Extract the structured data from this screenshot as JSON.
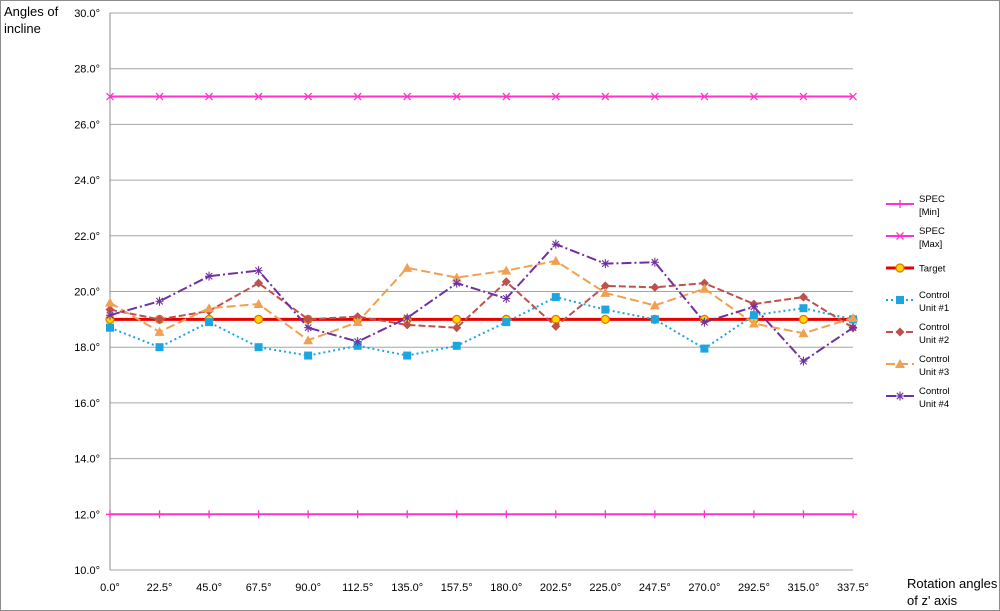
{
  "chart_data": {
    "type": "line",
    "ylabel": "Angles of incline",
    "xlabel": "Rotation angles of z' axis",
    "ylim": [
      10,
      30
    ],
    "y_ticks": [
      "10.0°",
      "12.0°",
      "14.0°",
      "16.0°",
      "18.0°",
      "20.0°",
      "22.0°",
      "24.0°",
      "26.0°",
      "28.0°",
      "30.0°"
    ],
    "y_tick_values": [
      10,
      12,
      14,
      16,
      18,
      20,
      22,
      24,
      26,
      28,
      30
    ],
    "categories": [
      "0.0°",
      "22.5°",
      "45.0°",
      "67.5°",
      "90.0°",
      "112.5°",
      "135.0°",
      "157.5°",
      "180.0°",
      "202.5°",
      "225.0°",
      "247.5°",
      "270.0°",
      "292.5°",
      "315.0°",
      "337.5°"
    ],
    "grid": "horizontal",
    "legend_position": "right",
    "series": [
      {
        "name": "SPEC [Min]",
        "legend_lines": [
          "SPEC",
          "[Min]"
        ],
        "color": "#ff33cc",
        "dash": "",
        "marker": "plus",
        "width": 2,
        "values": [
          12,
          12,
          12,
          12,
          12,
          12,
          12,
          12,
          12,
          12,
          12,
          12,
          12,
          12,
          12,
          12
        ]
      },
      {
        "name": "SPEC [Max]",
        "legend_lines": [
          "SPEC",
          "[Max]"
        ],
        "color": "#ff33cc",
        "dash": "",
        "marker": "x",
        "width": 2,
        "values": [
          27,
          27,
          27,
          27,
          27,
          27,
          27,
          27,
          27,
          27,
          27,
          27,
          27,
          27,
          27,
          27
        ]
      },
      {
        "name": "Target",
        "legend_lines": [
          "Target"
        ],
        "color": "#e60000",
        "dash": "",
        "marker": "circle",
        "width": 3,
        "values": [
          19,
          19,
          19,
          19,
          19,
          19,
          19,
          19,
          19,
          19,
          19,
          19,
          19,
          19,
          19,
          19
        ]
      },
      {
        "name": "Control Unit #1",
        "legend_lines": [
          "Control",
          "Unit #1"
        ],
        "color": "#1ba6e0",
        "dash": "2 3",
        "marker": "square",
        "width": 2,
        "values": [
          18.7,
          18.0,
          18.9,
          18.0,
          17.7,
          18.05,
          17.7,
          18.05,
          18.9,
          19.8,
          19.35,
          19.0,
          17.95,
          19.15,
          19.4,
          19.0
        ]
      },
      {
        "name": "Control Unit #2",
        "legend_lines": [
          "Control",
          "Unit #2"
        ],
        "color": "#c0504d",
        "dash": "7 3",
        "marker": "diamond",
        "width": 2,
        "values": [
          19.35,
          19.0,
          19.3,
          20.3,
          19.0,
          19.1,
          18.8,
          18.7,
          20.35,
          18.75,
          20.2,
          20.15,
          20.3,
          19.55,
          19.8,
          18.7
        ]
      },
      {
        "name": "Control Unit #3",
        "legend_lines": [
          "Control",
          "Unit #3"
        ],
        "color": "#f0a050",
        "dash": "9 4",
        "marker": "triangle",
        "width": 2,
        "values": [
          19.6,
          18.55,
          19.4,
          19.55,
          18.25,
          18.9,
          20.85,
          20.5,
          20.75,
          21.1,
          19.95,
          19.5,
          20.1,
          18.85,
          18.5,
          19.05
        ]
      },
      {
        "name": "Control Unit #4",
        "legend_lines": [
          "Control",
          "Unit #4"
        ],
        "color": "#7030a0",
        "dash": "10 3 2 3",
        "marker": "star",
        "width": 2,
        "values": [
          19.15,
          19.65,
          20.55,
          20.75,
          18.7,
          18.2,
          19.05,
          20.3,
          19.75,
          21.7,
          21.0,
          21.05,
          18.9,
          19.45,
          17.5,
          18.7
        ]
      }
    ]
  }
}
